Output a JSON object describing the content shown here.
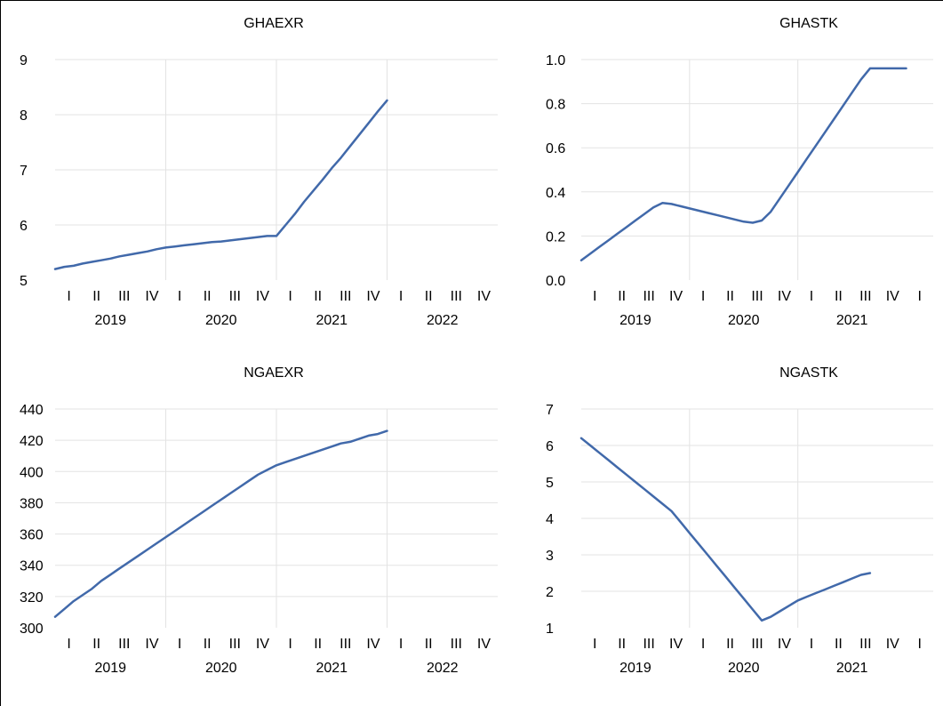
{
  "colors": {
    "line": "#4169AA",
    "grid": "#E3E3E3",
    "text": "#000000"
  },
  "chart_data": [
    {
      "type": "line",
      "title": "GHAEXR",
      "ylim": [
        5,
        9
      ],
      "y_ticks": [
        "5",
        "6",
        "7",
        "8",
        "9"
      ],
      "x_quarter_labels": [
        "I",
        "II",
        "III",
        "IV",
        "I",
        "II",
        "III",
        "IV",
        "I",
        "II",
        "III",
        "IV",
        "I",
        "II",
        "III",
        "IV"
      ],
      "x_year_labels": [
        "2019",
        "2020",
        "2021",
        "2022"
      ],
      "x_range_months": [
        0,
        48
      ],
      "grid": true,
      "series": [
        {
          "x": [
            0,
            1,
            2,
            3,
            4,
            5,
            6,
            7,
            8,
            9,
            10,
            11,
            12,
            13,
            14,
            15,
            16,
            17,
            18,
            19,
            20,
            21,
            22,
            23,
            24,
            25,
            26,
            27,
            28,
            29,
            30,
            31,
            32,
            33,
            34,
            35,
            36
          ],
          "values": [
            5.2,
            5.24,
            5.26,
            5.3,
            5.33,
            5.36,
            5.39,
            5.43,
            5.46,
            5.49,
            5.52,
            5.56,
            5.59,
            5.61,
            5.63,
            5.65,
            5.67,
            5.69,
            5.7,
            5.72,
            5.74,
            5.76,
            5.78,
            5.8,
            5.8,
            6.0,
            6.2,
            6.42,
            6.62,
            6.82,
            7.03,
            7.22,
            7.43,
            7.64,
            7.85,
            8.06,
            8.26
          ]
        }
      ]
    },
    {
      "type": "line",
      "title": "GHASTK",
      "ylim": [
        0.0,
        1.0
      ],
      "y_ticks": [
        "0.0",
        "0.2",
        "0.4",
        "0.6",
        "0.8",
        "1.0"
      ],
      "x_quarter_labels": [
        "I",
        "II",
        "III",
        "IV",
        "I",
        "II",
        "III",
        "IV",
        "I",
        "II",
        "III",
        "IV",
        "I"
      ],
      "x_year_labels": [
        "2019",
        "2020",
        "2021"
      ],
      "x_range_months": [
        0,
        39
      ],
      "grid": true,
      "series": [
        {
          "x": [
            0,
            1,
            2,
            3,
            4,
            5,
            6,
            7,
            8,
            9,
            10,
            11,
            12,
            13,
            14,
            15,
            16,
            17,
            18,
            19,
            20,
            21,
            22,
            23,
            24,
            25,
            26,
            27,
            28,
            29,
            30,
            31,
            32,
            33,
            34,
            35,
            36
          ],
          "values": [
            0.09,
            0.12,
            0.15,
            0.18,
            0.21,
            0.24,
            0.27,
            0.3,
            0.33,
            0.35,
            0.345,
            0.335,
            0.325,
            0.315,
            0.305,
            0.295,
            0.285,
            0.275,
            0.265,
            0.26,
            0.27,
            0.31,
            0.37,
            0.43,
            0.49,
            0.55,
            0.61,
            0.67,
            0.73,
            0.79,
            0.85,
            0.91,
            0.96,
            0.96,
            0.96,
            0.96,
            0.96
          ]
        }
      ]
    },
    {
      "type": "line",
      "title": "NGAEXR",
      "ylim": [
        300,
        440
      ],
      "y_ticks": [
        "300",
        "320",
        "340",
        "360",
        "380",
        "400",
        "420",
        "440"
      ],
      "x_quarter_labels": [
        "I",
        "II",
        "III",
        "IV",
        "I",
        "II",
        "III",
        "IV",
        "I",
        "II",
        "III",
        "IV",
        "I",
        "II",
        "III",
        "IV"
      ],
      "x_year_labels": [
        "2019",
        "2020",
        "2021",
        "2022"
      ],
      "x_range_months": [
        0,
        48
      ],
      "grid": true,
      "series": [
        {
          "x": [
            0,
            1,
            2,
            3,
            4,
            5,
            6,
            7,
            8,
            9,
            10,
            11,
            12,
            13,
            14,
            15,
            16,
            17,
            18,
            19,
            20,
            21,
            22,
            23,
            24,
            25,
            26,
            27,
            28,
            29,
            30,
            31,
            32,
            33,
            34,
            35,
            36
          ],
          "values": [
            307,
            312,
            317,
            321,
            325,
            330,
            334,
            338,
            342,
            346,
            350,
            354,
            358,
            362,
            366,
            370,
            374,
            378,
            382,
            386,
            390,
            394,
            398,
            401,
            404,
            406,
            408,
            410,
            412,
            414,
            416,
            418,
            419,
            421,
            423,
            424,
            426
          ]
        }
      ]
    },
    {
      "type": "line",
      "title": "NGASTK",
      "ylim": [
        1,
        7
      ],
      "y_ticks": [
        "1",
        "2",
        "3",
        "4",
        "5",
        "6",
        "7"
      ],
      "x_quarter_labels": [
        "I",
        "II",
        "III",
        "IV",
        "I",
        "II",
        "III",
        "IV",
        "I",
        "II",
        "III",
        "IV",
        "I"
      ],
      "x_year_labels": [
        "2019",
        "2020",
        "2021"
      ],
      "x_range_months": [
        0,
        39
      ],
      "grid": true,
      "series": [
        {
          "x": [
            0,
            1,
            2,
            3,
            4,
            5,
            6,
            7,
            8,
            9,
            10,
            11,
            12,
            13,
            14,
            15,
            16,
            17,
            18,
            19,
            20,
            21,
            22,
            23,
            24,
            25,
            26,
            27,
            28,
            29,
            30,
            31,
            32
          ],
          "values": [
            6.2,
            6.0,
            5.8,
            5.6,
            5.4,
            5.2,
            5.0,
            4.8,
            4.6,
            4.4,
            4.2,
            3.9,
            3.6,
            3.3,
            3.0,
            2.7,
            2.4,
            2.1,
            1.8,
            1.5,
            1.2,
            1.3,
            1.45,
            1.6,
            1.75,
            1.85,
            1.95,
            2.05,
            2.15,
            2.25,
            2.35,
            2.45,
            2.5
          ]
        }
      ]
    }
  ]
}
